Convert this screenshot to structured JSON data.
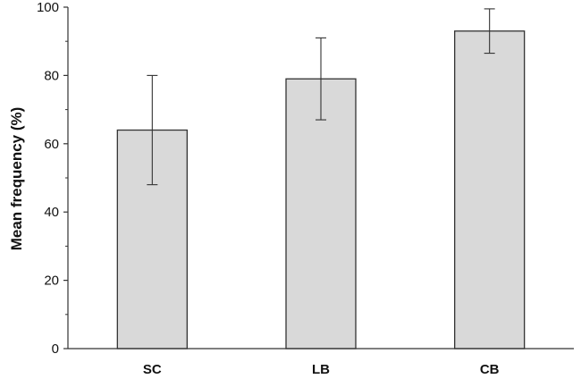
{
  "chart_data": {
    "type": "bar",
    "categories": [
      "SC",
      "LB",
      "CB"
    ],
    "values": [
      64,
      79,
      93
    ],
    "error_low": [
      48,
      67,
      86.5
    ],
    "error_high": [
      80,
      91,
      99.5
    ],
    "ylabel": "Mean frequency (%)",
    "xlabel": "",
    "ylim": [
      0,
      100
    ],
    "yticks": [
      0,
      20,
      40,
      60,
      80,
      100
    ],
    "grid": false,
    "legend": "none",
    "colors": {
      "bar_fill": "#d9d9d9",
      "bar_stroke": "#333333",
      "axis": "#333333"
    }
  }
}
